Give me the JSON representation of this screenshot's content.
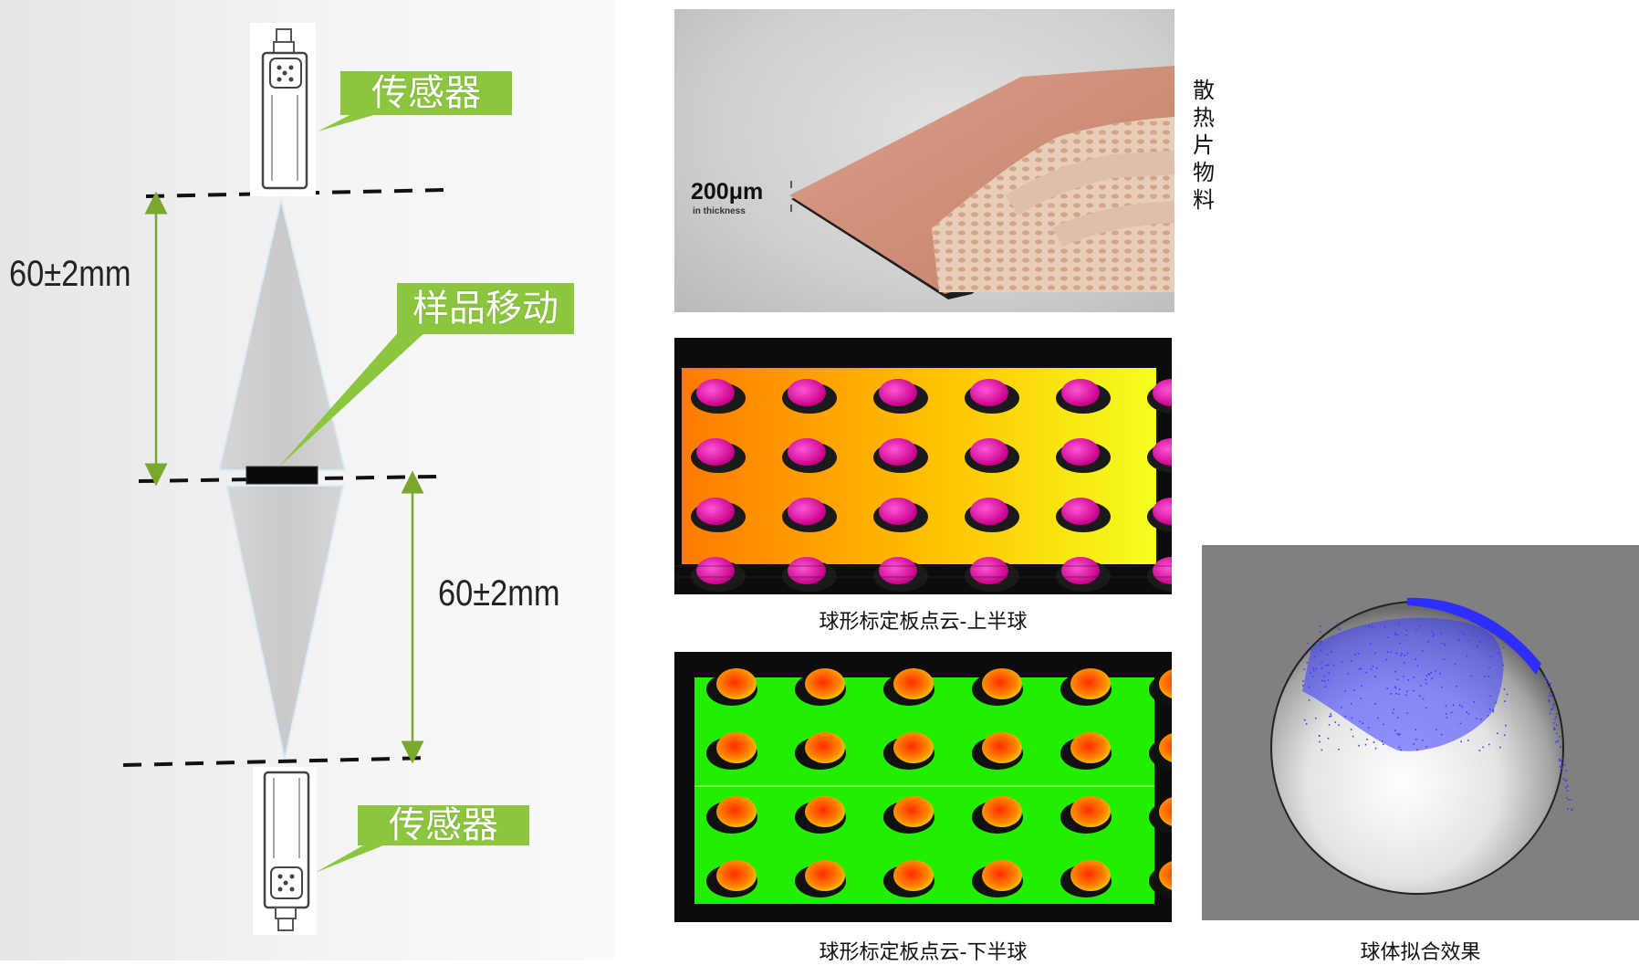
{
  "diagram": {
    "top_sensor_label": "传感器",
    "bottom_sensor_label": "传感器",
    "sample_label": "样品移动",
    "upper_distance": "60±2mm",
    "lower_distance": "60±2mm"
  },
  "material": {
    "vertical_label": [
      "散",
      "热",
      "片",
      "物",
      "料"
    ],
    "thickness_value": "200μm",
    "thickness_note": "in thickness"
  },
  "captions": {
    "upper_cloud": "球形标定板点云-上半球",
    "lower_cloud": "球形标定板点云-下半球",
    "sphere_fit": "球体拟合效果"
  },
  "colors": {
    "callout_green": "#8cc63f",
    "arrow_green": "#7aa82f",
    "upper_cloud_start": "#ff7a00",
    "upper_cloud_end": "#f4ff20",
    "lower_cloud": "#22ee00",
    "sphere_points": "#3b3bff"
  }
}
